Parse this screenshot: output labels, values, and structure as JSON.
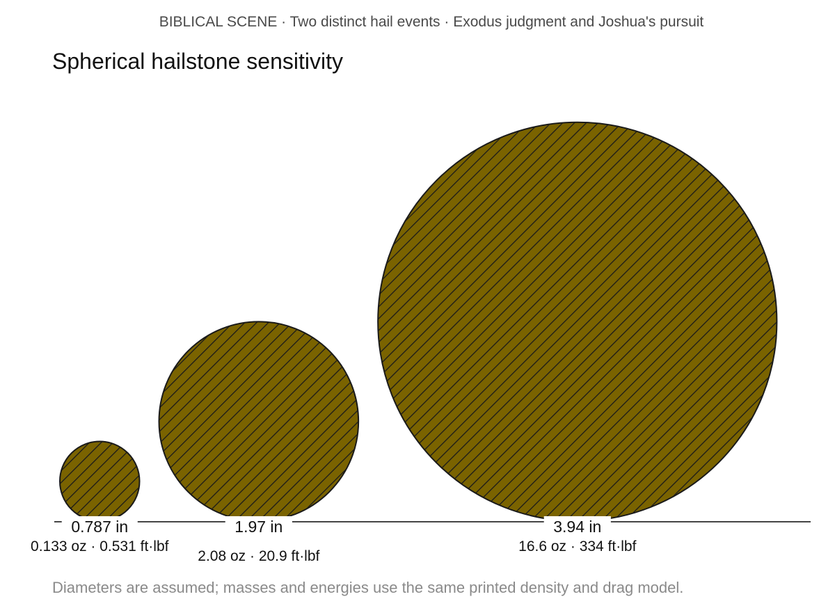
{
  "overline": "BIBLICAL SCENE · Two distinct hail events · Exodus judgment and Joshua's pursuit",
  "title": "Spherical hailstone sensitivity",
  "footnote": "Diameters are assumed; masses and energies use the same printed density and drag model.",
  "colors": {
    "fill": "#7a6300",
    "hatch": "#1a1a1a",
    "outline": "#1a1a1a",
    "baseline": "#444444"
  },
  "chart_data": {
    "type": "area",
    "title": "Spherical hailstone sensitivity",
    "items": [
      {
        "diameter_in": 0.787,
        "label": "0.787 in",
        "detail": "0.133 oz · 0.531 ft·lbf",
        "mass_oz": 0.133,
        "energy_ftlbf": 0.531
      },
      {
        "diameter_in": 1.97,
        "label": "1.97 in",
        "detail": "2.08 oz · 20.9 ft·lbf",
        "mass_oz": 2.08,
        "energy_ftlbf": 20.9
      },
      {
        "diameter_in": 3.94,
        "label": "3.94 in",
        "detail": "16.6 oz · 334 ft·lbf",
        "mass_oz": 16.6,
        "energy_ftlbf": 334
      }
    ]
  }
}
